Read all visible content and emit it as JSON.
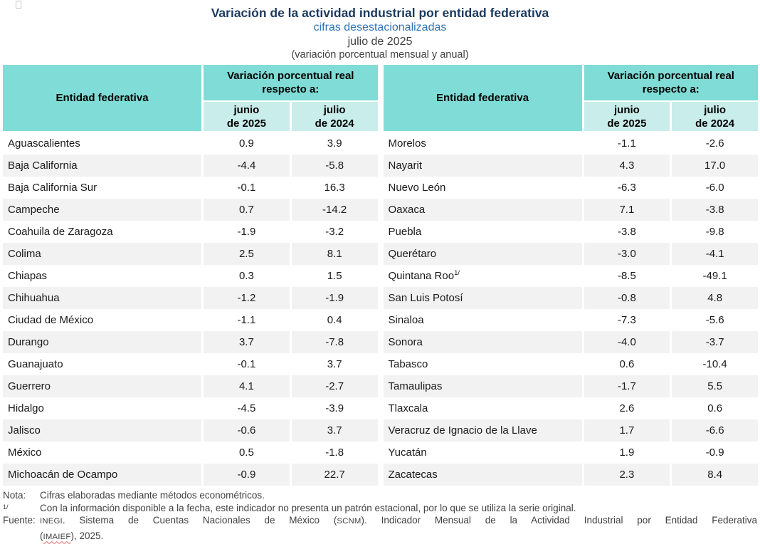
{
  "colors": {
    "header_teal": "#7FDCD6",
    "subheader_teal": "#C9EDEA",
    "stripe": "#F2F2F2",
    "title_navy": "#1B3A5F",
    "subtitle_blue": "#2E74B5",
    "note_gray": "#404040"
  },
  "heading": {
    "title": "Variación de la actividad industrial por entidad federativa",
    "subtitle1": "cifras desestacionalizadas",
    "subtitle2": "julio de 2025",
    "subtitle3": "(variación porcentual mensual y anual)"
  },
  "table_header": {
    "entity": "Entidad federativa",
    "group": "Variación porcentual real respecto a:",
    "col_jun": "junio\nde 2025",
    "col_jul": "julio\nde 2024"
  },
  "tables": [
    {
      "name": "left",
      "rows": [
        {
          "name": "Aguascalientes",
          "jun": "0.9",
          "jul": "3.9"
        },
        {
          "name": "Baja California",
          "jun": "-4.4",
          "jul": "-5.8"
        },
        {
          "name": "Baja California Sur",
          "jun": "-0.1",
          "jul": "16.3"
        },
        {
          "name": "Campeche",
          "jun": "0.7",
          "jul": "-14.2"
        },
        {
          "name": "Coahuila de Zaragoza",
          "jun": "-1.9",
          "jul": "-3.2"
        },
        {
          "name": "Colima",
          "jun": "2.5",
          "jul": "8.1"
        },
        {
          "name": "Chiapas",
          "jun": "0.3",
          "jul": "1.5"
        },
        {
          "name": "Chihuahua",
          "jun": "-1.2",
          "jul": "-1.9"
        },
        {
          "name": "Ciudad de México",
          "jun": "-1.1",
          "jul": "0.4"
        },
        {
          "name": "Durango",
          "jun": "3.7",
          "jul": "-7.8"
        },
        {
          "name": "Guanajuato",
          "jun": "-0.1",
          "jul": "3.7"
        },
        {
          "name": "Guerrero",
          "jun": "4.1",
          "jul": "-2.7"
        },
        {
          "name": "Hidalgo",
          "jun": "-4.5",
          "jul": "-3.9"
        },
        {
          "name": "Jalisco",
          "jun": "-0.6",
          "jul": "3.7"
        },
        {
          "name": "México",
          "jun": "0.5",
          "jul": "-1.8"
        },
        {
          "name": "Michoacán de Ocampo",
          "jun": "-0.9",
          "jul": "22.7"
        }
      ]
    },
    {
      "name": "right",
      "rows": [
        {
          "name": "Morelos",
          "jun": "-1.1",
          "jul": "-2.6"
        },
        {
          "name": "Nayarit",
          "jun": "4.3",
          "jul": "17.0"
        },
        {
          "name": "Nuevo León",
          "jun": "-6.3",
          "jul": "-6.0"
        },
        {
          "name": "Oaxaca",
          "jun": "7.1",
          "jul": "-3.8"
        },
        {
          "name": "Puebla",
          "jun": "-3.8",
          "jul": "-9.8"
        },
        {
          "name": "Querétaro",
          "jun": "-3.0",
          "jul": "-4.1"
        },
        {
          "name": "Quintana Roo",
          "sup": "1/",
          "jun": "-8.5",
          "jul": "-49.1"
        },
        {
          "name": "San Luis Potosí",
          "jun": "-0.8",
          "jul": "4.8"
        },
        {
          "name": "Sinaloa",
          "jun": "-7.3",
          "jul": "-5.6"
        },
        {
          "name": "Sonora",
          "jun": "-4.0",
          "jul": "-3.7"
        },
        {
          "name": "Tabasco",
          "jun": "0.6",
          "jul": "-10.4"
        },
        {
          "name": "Tamaulipas",
          "jun": "-1.7",
          "jul": "5.5"
        },
        {
          "name": "Tlaxcala",
          "jun": "2.6",
          "jul": "0.6"
        },
        {
          "name": "Veracruz de Ignacio de la Llave",
          "jun": "1.7",
          "jul": "-6.6"
        },
        {
          "name": "Yucatán",
          "jun": "1.9",
          "jul": "-0.9"
        },
        {
          "name": "Zacatecas",
          "jun": "2.3",
          "jul": "8.4"
        }
      ]
    }
  ],
  "notes": {
    "nota_label": "Nota:",
    "nota_text": "Cifras elaboradas mediante métodos econométricos.",
    "fn_label": "1/",
    "fn_text": "Con la información disponible a la fecha, este indicador no presenta un patrón estacional, por lo que se utiliza la serie original.",
    "fuente_label": "Fuente:",
    "fuente": {
      "seg1_sc": "INEGI",
      "seg2": ". Sistema de Cuentas Nacionales de México (",
      "seg3_sc": "SCNM",
      "seg4": "). Indicador Mensual de la Actividad Industrial por Entidad Federativa",
      "line2_open": "(",
      "line2_sc": "IMAIEF",
      "line2_close": "), 2025."
    }
  }
}
